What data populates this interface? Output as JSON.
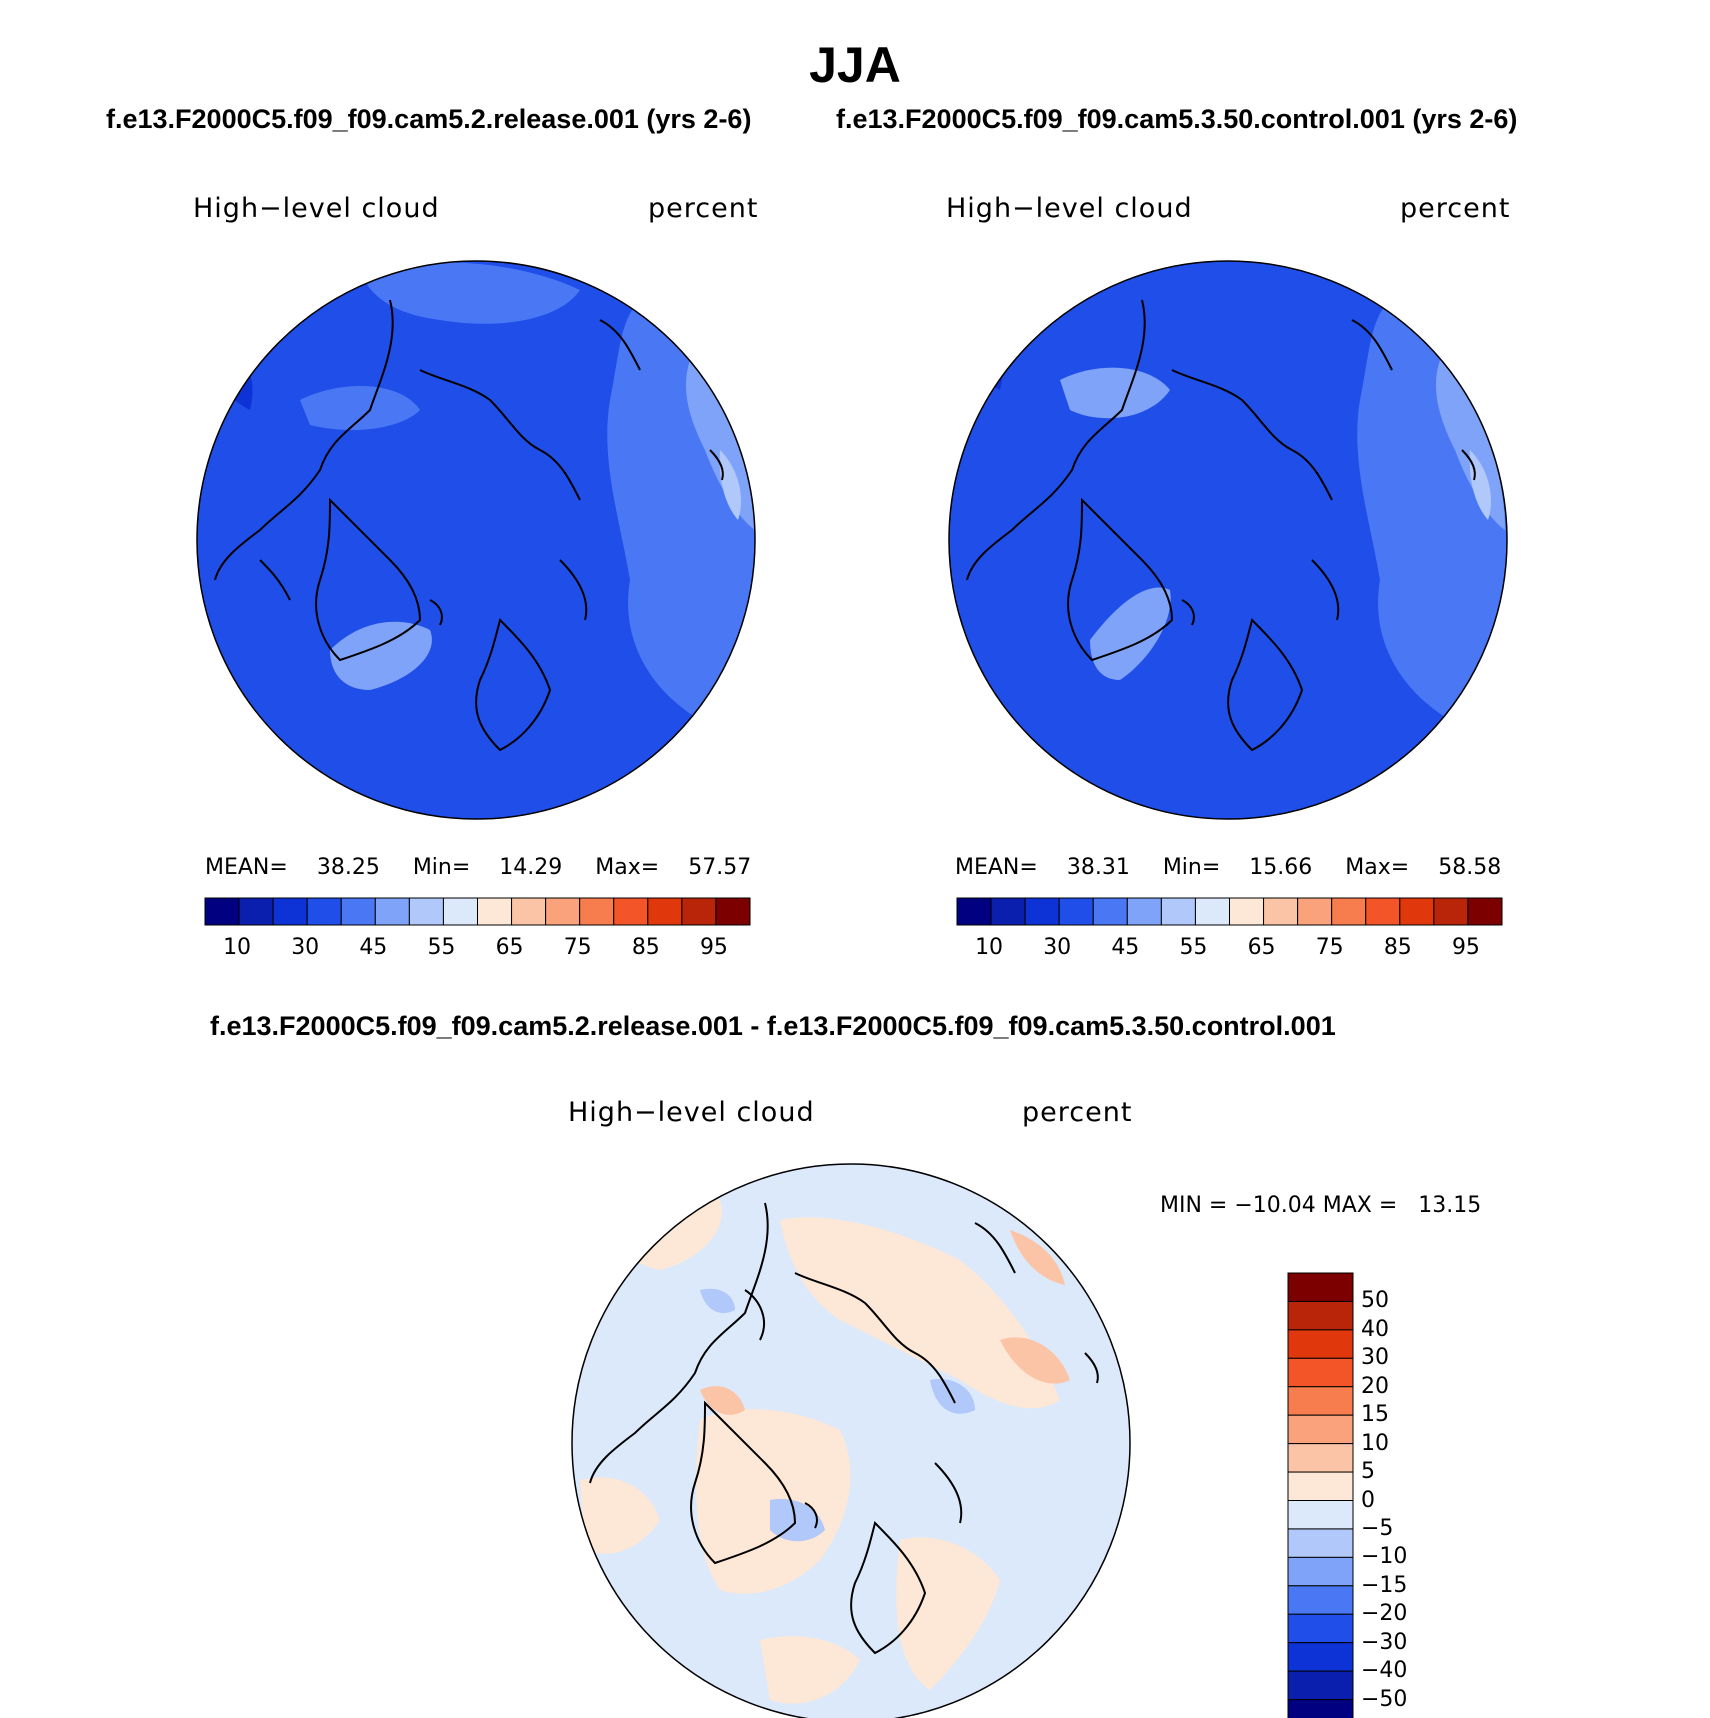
{
  "title": "JJA",
  "panels": [
    {
      "case_title": "f.e13.F2000C5.f09_f09.cam5.2.release.001 (yrs 2-6)",
      "variable": "High−level cloud",
      "units": "percent",
      "stats": {
        "mean_label": "MEAN=",
        "mean": "38.25",
        "min_label": "Min=",
        "min": "14.29",
        "max_label": "Max=",
        "max": "57.57"
      }
    },
    {
      "case_title": "f.e13.F2000C5.f09_f09.cam5.3.50.control.001 (yrs 2-6)",
      "variable": "High−level cloud",
      "units": "percent",
      "stats": {
        "mean_label": "MEAN=",
        "mean": "38.31",
        "min_label": "Min=",
        "min": "15.66",
        "max_label": "Max=",
        "max": "58.58"
      }
    }
  ],
  "diff": {
    "case_title": "f.e13.F2000C5.f09_f09.cam5.2.release.001 - f.e13.F2000C5.f09_f09.cam5.3.50.control.001",
    "variable": "High−level cloud",
    "units": "percent",
    "minmax": "MIN = −10.04 MAX =   13.15"
  },
  "colorbar": {
    "colors": [
      "#000080",
      "#0a1fad",
      "#0d33d6",
      "#1f4fe8",
      "#4a78f5",
      "#7ea3f8",
      "#b0c8fa",
      "#dce9fb",
      "#fde7d6",
      "#fcc4a6",
      "#f9a27c",
      "#f77d4e",
      "#f35528",
      "#e0380c",
      "#b82508",
      "#7c0000"
    ],
    "labels": [
      "10",
      "30",
      "45",
      "55",
      "65",
      "75",
      "85",
      "95"
    ]
  },
  "diff_colorbar": {
    "colors": [
      "#7c0000",
      "#b82508",
      "#e0380c",
      "#f35528",
      "#f77d4e",
      "#f9a27c",
      "#fcc4a6",
      "#fde7d6",
      "#dce9fb",
      "#b0c8fa",
      "#7ea3f8",
      "#4a78f5",
      "#1f4fe8",
      "#0d33d6",
      "#0a1fad",
      "#000080"
    ],
    "labels": [
      "50",
      "40",
      "30",
      "20",
      "15",
      "10",
      "5",
      "0",
      "−5",
      "−10",
      "−15",
      "−20",
      "−30",
      "−40",
      "−50"
    ]
  },
  "map_colors": {
    "panel_base": "#1f4fe8",
    "panel_light": "#4a78f5",
    "panel_lighter": "#7ea3f8",
    "panel_lightest": "#b0c8fa",
    "panel_dark": "#0d33d6",
    "diff_base": "#dce9fb",
    "diff_pos": "#fde7d6",
    "diff_pos2": "#fcc4a6",
    "diff_pos3": "#f9a27c",
    "diff_neg": "#b0c8fa",
    "diff_neg2": "#7ea3f8"
  }
}
